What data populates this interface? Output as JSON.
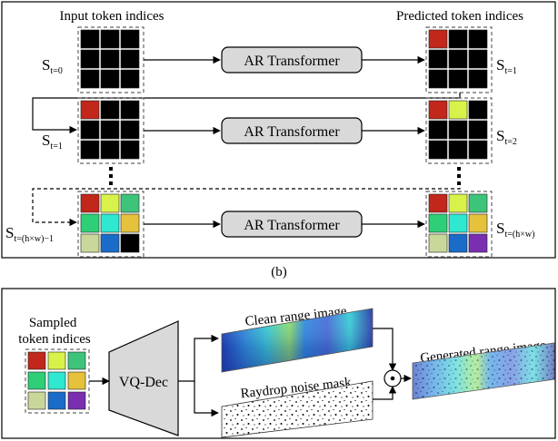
{
  "top": {
    "input_label": "Input token indices",
    "output_label": "Predicted token indices",
    "caption": "(b)",
    "transformer_label": "AR Transformer",
    "rows": [
      {
        "left_state": {
          "main": "S",
          "sub": "t=0"
        },
        "right_state": {
          "main": "S",
          "sub": "t=1"
        },
        "left_grid": [
          "#000000",
          "#000000",
          "#000000",
          "#000000",
          "#000000",
          "#000000",
          "#000000",
          "#000000",
          "#000000"
        ],
        "right_grid": [
          "#c1271a",
          "#000000",
          "#000000",
          "#000000",
          "#000000",
          "#000000",
          "#000000",
          "#000000",
          "#000000"
        ]
      },
      {
        "left_state": {
          "main": "S",
          "sub": "t=1"
        },
        "right_state": {
          "main": "S",
          "sub": "t=2"
        },
        "left_grid": [
          "#c1271a",
          "#000000",
          "#000000",
          "#000000",
          "#000000",
          "#000000",
          "#000000",
          "#000000",
          "#000000"
        ],
        "right_grid": [
          "#c1271a",
          "#d8f24a",
          "#000000",
          "#000000",
          "#000000",
          "#000000",
          "#000000",
          "#000000",
          "#000000"
        ]
      },
      {
        "left_state": {
          "main": "S",
          "sub": "t=(h×w)−1"
        },
        "right_state": {
          "main": "S",
          "sub": "t=(h×w)"
        },
        "left_grid": [
          "#c1271a",
          "#d8f24a",
          "#3ec47a",
          "#2fcf78",
          "#2ee8d0",
          "#e6c13c",
          "#c8d89a",
          "#1a6cc8",
          "#000000"
        ],
        "right_grid": [
          "#c1271a",
          "#d8f24a",
          "#3ec47a",
          "#2fcf78",
          "#2ee8d0",
          "#e6c13c",
          "#c8d89a",
          "#1a6cc8",
          "#7a2fb0"
        ]
      }
    ]
  },
  "bottom": {
    "sampled_label": [
      "Sampled",
      "token indices"
    ],
    "decoder_label": "VQ-Dec",
    "clean_label": "Clean range image",
    "noise_label": "Raydrop noise mask",
    "generated_label": "Generated range image",
    "operator_symbol": "⊙",
    "grid": [
      "#c1271a",
      "#d8f24a",
      "#3ec47a",
      "#2fcf78",
      "#2ee8d0",
      "#e6c13c",
      "#c8d89a",
      "#1a6cc8",
      "#7a2fb0"
    ]
  }
}
